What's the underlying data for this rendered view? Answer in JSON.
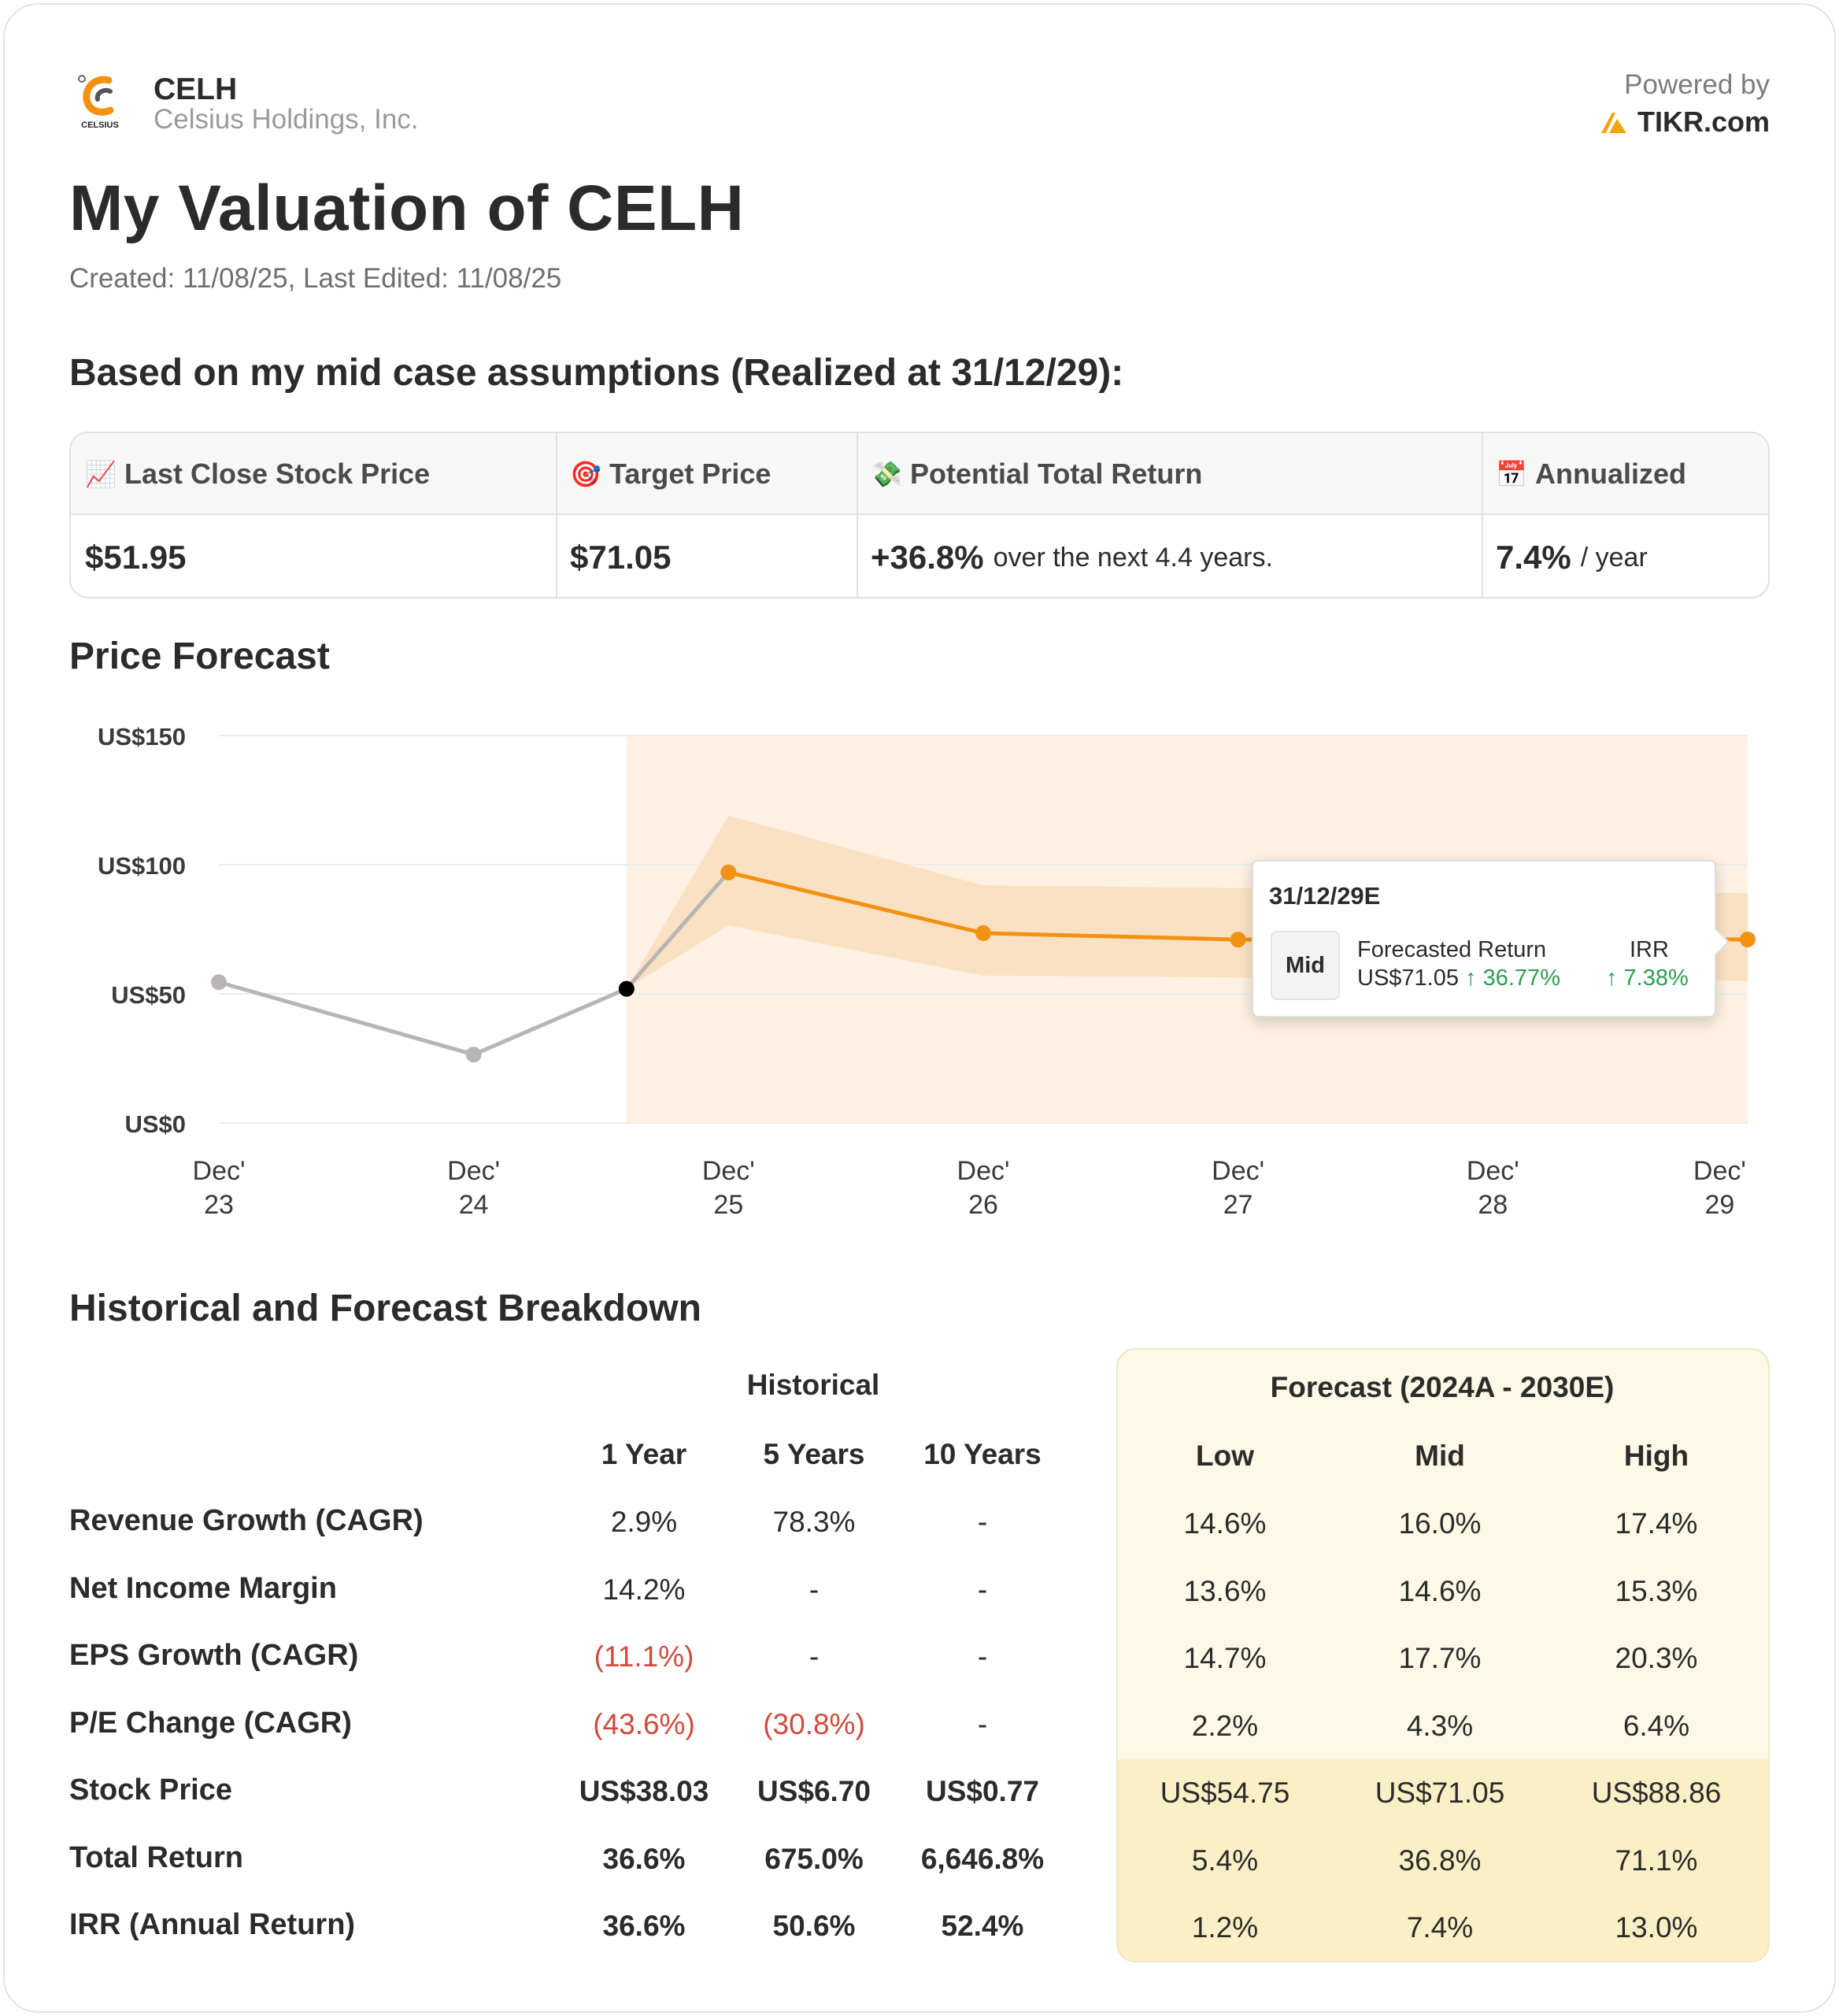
{
  "header": {
    "ticker": "CELH",
    "company": "Celsius Holdings, Inc.",
    "logo_text": "CELSIUS",
    "powered_by": "Powered by",
    "brand": "TIKR.com"
  },
  "title": "My Valuation of CELH",
  "dates": "Created: 11/08/25, Last Edited: 11/08/25",
  "assumptions_heading": "Based on my mid case assumptions (Realized at 31/12/29):",
  "summary": {
    "columns": [
      {
        "icon": "📈",
        "icon_name": "chart-increasing-icon",
        "label": "Last Close Stock Price",
        "value": "$51.95",
        "suffix": ""
      },
      {
        "icon": "🎯",
        "icon_name": "target-icon",
        "label": "Target Price",
        "value": "$71.05",
        "suffix": ""
      },
      {
        "icon": "💸",
        "icon_name": "money-wings-icon",
        "label": "Potential Total Return",
        "value": "+36.8%",
        "suffix": "over the next 4.4 years."
      },
      {
        "icon": "📅",
        "icon_name": "calendar-icon",
        "label": "Annualized",
        "value": "7.4%",
        "suffix": "/ year"
      }
    ]
  },
  "price_forecast": {
    "heading": "Price Forecast",
    "tooltip": {
      "date": "31/12/29E",
      "case": "Mid",
      "return_label": "Forecasted Return",
      "price": "US$71.05",
      "return_pct": "↑ 36.77%",
      "irr_label": "IRR",
      "irr_pct": "↑ 7.38%"
    }
  },
  "chart_data": {
    "type": "line",
    "title": "Price Forecast",
    "xlabel": "",
    "ylabel": "",
    "ylim": [
      0,
      150
    ],
    "y_ticks": [
      {
        "value": 150,
        "label": "US$150"
      },
      {
        "value": 100,
        "label": "US$100"
      },
      {
        "value": 50,
        "label": "US$50"
      },
      {
        "value": 0,
        "label": "US$0"
      }
    ],
    "x_ticks": [
      {
        "x": 2023.95,
        "line1": "Dec'",
        "line2": "23"
      },
      {
        "x": 2024.95,
        "line1": "Dec'",
        "line2": "24"
      },
      {
        "x": 2025.95,
        "line1": "Dec'",
        "line2": "25"
      },
      {
        "x": 2026.95,
        "line1": "Dec'",
        "line2": "26"
      },
      {
        "x": 2027.95,
        "line1": "Dec'",
        "line2": "27"
      },
      {
        "x": 2028.95,
        "line1": "Dec'",
        "line2": "28"
      },
      {
        "x": 2029.84,
        "line1": "Dec'",
        "line2": "29"
      }
    ],
    "xlim": [
      2023.95,
      2029.95
    ],
    "forecast_region_start": 2025.55,
    "series": [
      {
        "name": "Historical",
        "color": "#b9b5b5",
        "points": [
          [
            2023.95,
            54.5
          ],
          [
            2024.95,
            26.5
          ],
          [
            2025.55,
            51.95
          ]
        ]
      },
      {
        "name": "Current",
        "color": "#000000",
        "points": [
          [
            2025.55,
            51.95
          ]
        ]
      },
      {
        "name": "Mid forecast",
        "color": "#f39212",
        "points": [
          [
            2025.55,
            51.95
          ],
          [
            2025.95,
            97.0
          ],
          [
            2026.95,
            73.5
          ],
          [
            2027.95,
            71.0
          ],
          [
            2029.95,
            71.05
          ]
        ]
      }
    ],
    "band": {
      "name": "Low-High range",
      "color": "#fbd8b4",
      "x": [
        2025.55,
        2025.95,
        2026.95,
        2029.95
      ],
      "low": [
        51.95,
        76.5,
        57.0,
        55.0
      ],
      "high": [
        51.95,
        119.0,
        92.0,
        89.0
      ]
    }
  },
  "breakdown": {
    "heading": "Historical and Forecast Breakdown",
    "historical_label": "Historical",
    "forecast_label": "Forecast (2024A - 2030E)",
    "hist_cols": [
      "1 Year",
      "5 Years",
      "10 Years"
    ],
    "fc_cols": [
      "Low",
      "Mid",
      "High"
    ],
    "rows": [
      {
        "label": "Revenue Growth (CAGR)",
        "hist": [
          "2.9%",
          "78.3%",
          "-"
        ],
        "fc": [
          "14.6%",
          "16.0%",
          "17.4%"
        ]
      },
      {
        "label": "Net Income Margin",
        "hist": [
          "14.2%",
          "-",
          "-"
        ],
        "fc": [
          "13.6%",
          "14.6%",
          "15.3%"
        ]
      },
      {
        "label": "EPS Growth (CAGR)",
        "hist": [
          "(11.1%)",
          "-",
          "-"
        ],
        "fc": [
          "14.7%",
          "17.7%",
          "20.3%"
        ]
      },
      {
        "label": "P/E Change (CAGR)",
        "hist": [
          "(43.6%)",
          "(30.8%)",
          "-"
        ],
        "fc": [
          "2.2%",
          "4.3%",
          "6.4%"
        ]
      },
      {
        "label": "Stock Price",
        "hist": [
          "US$38.03",
          "US$6.70",
          "US$0.77"
        ],
        "fc": [
          "US$54.75",
          "US$71.05",
          "US$88.86"
        ]
      },
      {
        "label": "Total Return",
        "hist": [
          "36.6%",
          "675.0%",
          "6,646.8%"
        ],
        "fc": [
          "5.4%",
          "36.8%",
          "71.1%"
        ]
      },
      {
        "label": "IRR (Annual Return)",
        "hist": [
          "36.6%",
          "50.6%",
          "52.4%"
        ],
        "fc": [
          "1.2%",
          "7.4%",
          "13.0%"
        ]
      }
    ]
  },
  "colors": {
    "accent": "#f39212",
    "negative": "#d14a3c",
    "positive": "#2e9d4c",
    "forecast_bg": "#fdf9e6",
    "forecast_bg_dark": "#fbf0c5"
  }
}
